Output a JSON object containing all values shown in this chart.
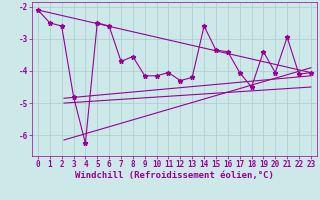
{
  "zigzag_x": [
    0,
    1,
    2,
    3,
    4,
    5,
    6,
    7,
    8,
    9,
    10,
    11,
    12,
    13,
    14,
    15,
    16,
    17,
    18,
    19,
    20,
    21,
    22,
    23
  ],
  "zigzag_y": [
    -2.1,
    -2.5,
    -2.6,
    -4.8,
    -6.25,
    -2.5,
    -2.6,
    -3.7,
    -3.55,
    -4.15,
    -4.15,
    -4.05,
    -4.3,
    -4.2,
    -2.6,
    -3.35,
    -3.4,
    -4.05,
    -4.5,
    -3.4,
    -4.05,
    -2.95,
    -4.1,
    -4.05
  ],
  "line1_x": [
    0,
    23
  ],
  "line1_y": [
    -2.1,
    -4.05
  ],
  "line2_x": [
    2.2,
    23
  ],
  "line2_y": [
    -4.85,
    -4.15
  ],
  "line3_x": [
    2.2,
    23
  ],
  "line3_y": [
    -5.0,
    -4.5
  ],
  "line4_x": [
    2.2,
    23
  ],
  "line4_y": [
    -6.15,
    -3.9
  ],
  "xlim": [
    -0.5,
    23.5
  ],
  "ylim": [
    -6.65,
    -1.85
  ],
  "yticks": [
    -2,
    -3,
    -4,
    -5,
    -6
  ],
  "xticks": [
    0,
    1,
    2,
    3,
    4,
    5,
    6,
    7,
    8,
    9,
    10,
    11,
    12,
    13,
    14,
    15,
    16,
    17,
    18,
    19,
    20,
    21,
    22,
    23
  ],
  "xlabel": "Windchill (Refroidissement éolien,°C)",
  "line_color": "#990099",
  "bg_color": "#cce8e8",
  "grid_color": "#aacccc",
  "tick_fontsize": 5.5,
  "xlabel_fontsize": 6.5
}
